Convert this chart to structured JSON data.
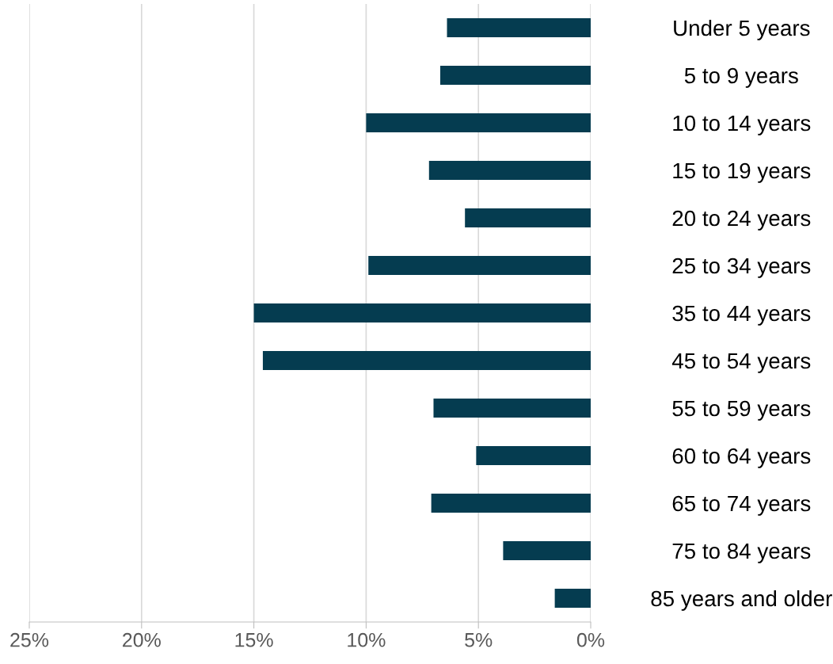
{
  "chart_data": {
    "type": "bar",
    "orientation": "horizontal",
    "categories": [
      "Under 5 years",
      "5 to 9 years",
      "10 to 14 years",
      "15 to 19 years",
      "20 to 24 years",
      "25 to 34 years",
      "35 to 44 years",
      "45 to 54 years",
      "55 to 59 years",
      "60 to 64 years",
      "65 to 74 years",
      "75 to 84 years",
      "85 years and older"
    ],
    "values": [
      6.4,
      6.7,
      10.0,
      7.2,
      5.6,
      9.9,
      15.0,
      14.6,
      7.0,
      5.1,
      7.1,
      3.9,
      1.6
    ],
    "color": "#053c50",
    "xlim": [
      25,
      0
    ],
    "xticks": [
      {
        "value": 25,
        "label": "25%"
      },
      {
        "value": 20,
        "label": "20%"
      },
      {
        "value": 15,
        "label": "15%"
      },
      {
        "value": 10,
        "label": "10%"
      },
      {
        "value": 5,
        "label": "5%"
      },
      {
        "value": 0,
        "label": "0%"
      }
    ],
    "grid": "x"
  }
}
